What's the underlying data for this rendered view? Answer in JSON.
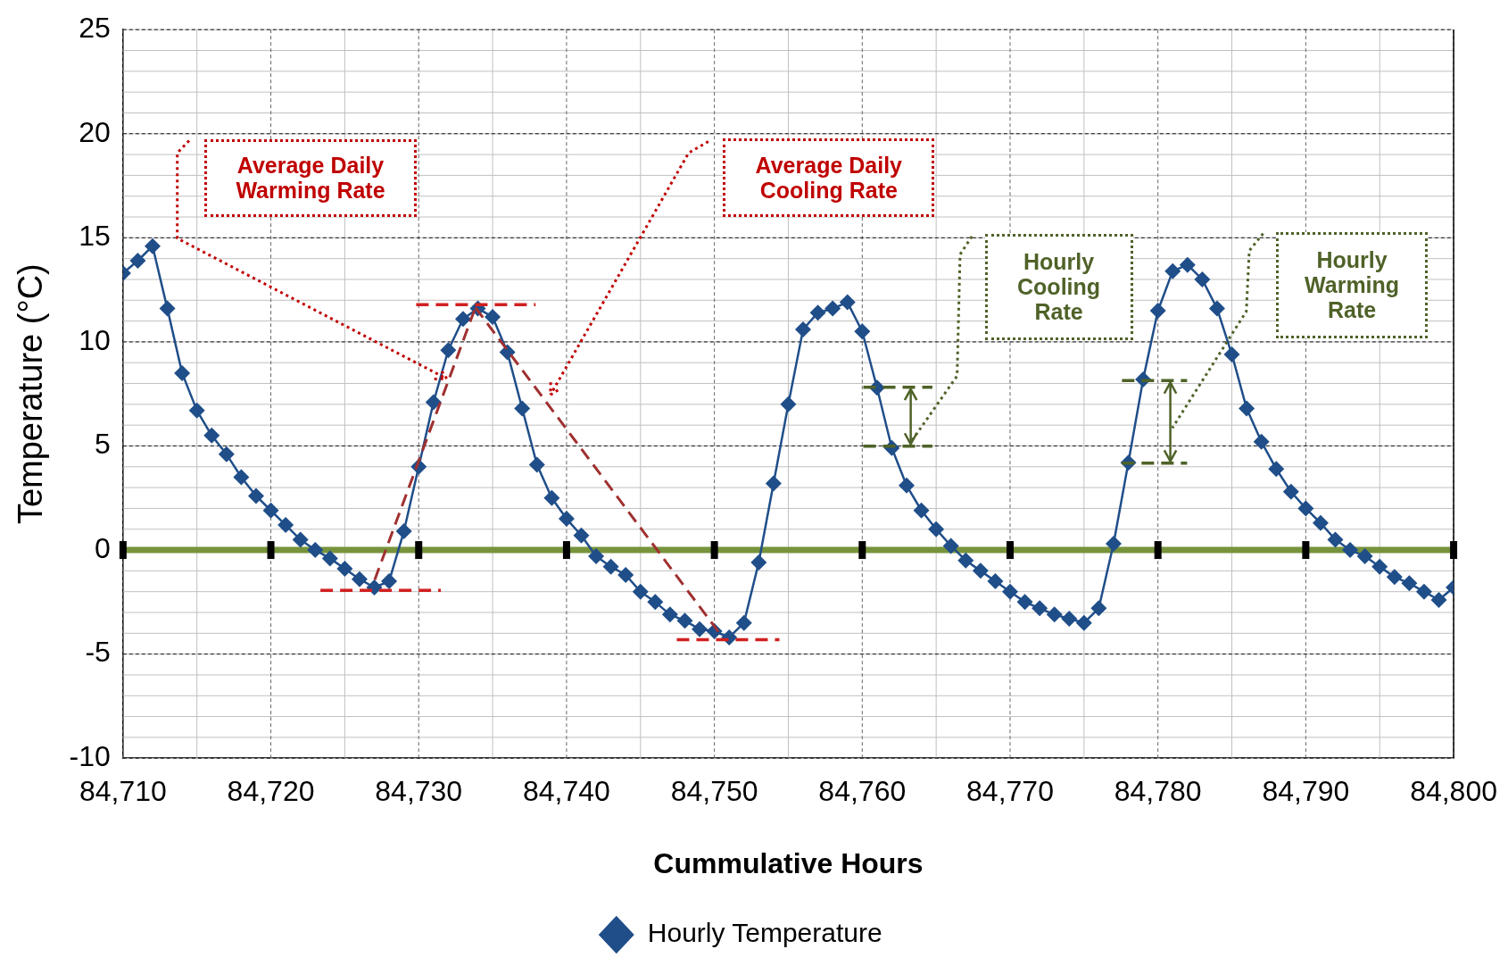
{
  "chart_data": {
    "type": "line",
    "xlabel": "Cummulative Hours",
    "ylabel": "Temperature (°C)",
    "x": [
      84710,
      84711,
      84712,
      84713,
      84714,
      84715,
      84716,
      84717,
      84718,
      84719,
      84720,
      84721,
      84722,
      84723,
      84724,
      84725,
      84726,
      84727,
      84728,
      84729,
      84730,
      84731,
      84732,
      84733,
      84734,
      84735,
      84736,
      84737,
      84738,
      84739,
      84740,
      84741,
      84742,
      84743,
      84744,
      84745,
      84746,
      84747,
      84748,
      84749,
      84750,
      84751,
      84752,
      84753,
      84754,
      84755,
      84756,
      84757,
      84758,
      84759,
      84760,
      84761,
      84762,
      84763,
      84764,
      84765,
      84766,
      84767,
      84768,
      84769,
      84770,
      84771,
      84772,
      84773,
      84774,
      84775,
      84776,
      84777,
      84778,
      84779,
      84780,
      84781,
      84782,
      84783,
      84784,
      84785,
      84786,
      84787,
      84788,
      84789,
      84790,
      84791,
      84792,
      84793,
      84794,
      84795,
      84796,
      84797,
      84798,
      84799,
      84800
    ],
    "series": [
      {
        "name": "Hourly Temperature",
        "color": "#1f4e89",
        "values": [
          13.3,
          13.9,
          14.6,
          11.6,
          8.5,
          6.7,
          5.5,
          4.6,
          3.5,
          2.6,
          1.9,
          1.2,
          0.5,
          0,
          -0.4,
          -0.9,
          -1.4,
          -1.8,
          -1.5,
          0.9,
          4.0,
          7.1,
          9.6,
          11.1,
          11.6,
          11.2,
          9.5,
          6.8,
          4.1,
          2.5,
          1.5,
          0.7,
          -0.3,
          -0.8,
          -1.2,
          -2.0,
          -2.5,
          -3.1,
          -3.4,
          -3.8,
          -3.9,
          -4.2,
          -3.5,
          -0.6,
          3.2,
          7.0,
          10.6,
          11.4,
          11.6,
          11.9,
          10.5,
          7.8,
          4.9,
          3.1,
          1.9,
          1.0,
          0.2,
          -0.5,
          -1.0,
          -1.5,
          -2.0,
          -2.5,
          -2.8,
          -3.1,
          -3.3,
          -3.5,
          -2.8,
          0.3,
          4.2,
          8.2,
          11.5,
          13.4,
          13.7,
          13.0,
          11.6,
          9.4,
          6.8,
          5.2,
          3.9,
          2.8,
          2.0,
          1.3,
          0.5,
          0,
          -0.3,
          -0.8,
          -1.3,
          -1.6,
          -2.0,
          -2.4,
          -1.8
        ]
      }
    ],
    "xlim": [
      84710,
      84800
    ],
    "xticks": [
      {
        "value": 84710,
        "label": "84,710"
      },
      {
        "value": 84720,
        "label": "84,720"
      },
      {
        "value": 84730,
        "label": "84,730"
      },
      {
        "value": 84740,
        "label": "84,740"
      },
      {
        "value": 84750,
        "label": "84,750"
      },
      {
        "value": 84760,
        "label": "84,760"
      },
      {
        "value": 84770,
        "label": "84,770"
      },
      {
        "value": 84780,
        "label": "84,780"
      },
      {
        "value": 84790,
        "label": "84,790"
      },
      {
        "value": 84800,
        "label": "84,800"
      }
    ],
    "ylim": [
      -10,
      25
    ],
    "yticks": [
      -10,
      -5,
      0,
      5,
      10,
      15,
      20,
      25
    ],
    "ref_lines": [
      {
        "axis": "y",
        "value": 0,
        "color": "#77933c"
      }
    ],
    "annotations": [
      "Average Daily Warming Rate",
      "Average Daily Cooling Rate",
      "Hourly Cooling Rate",
      "Hourly Warming Rate"
    ],
    "grid": true,
    "legend": "bottom",
    "marker": "diamond",
    "line_style": "solid"
  }
}
